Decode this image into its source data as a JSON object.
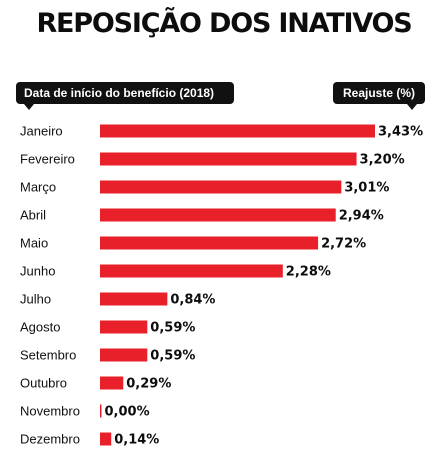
{
  "header": {
    "title": "REPOSIÇÃO DOS INATIVOS",
    "left_tag": "Data de início do benefício (2018)",
    "right_tag": "Reajuste (%)"
  },
  "colors": {
    "bar": "#e8202a",
    "tag_bg": "#111111"
  },
  "chart_data": {
    "type": "bar",
    "orientation": "horizontal",
    "title": "REPOSIÇÃO DOS INATIVOS",
    "xlabel": "Reajuste (%)",
    "ylabel": "Data de início do benefício (2018)",
    "categories": [
      "Janeiro",
      "Fevereiro",
      "Março",
      "Abril",
      "Maio",
      "Junho",
      "Julho",
      "Agosto",
      "Setembro",
      "Outubro",
      "Novembro",
      "Dezembro"
    ],
    "values": [
      3.43,
      3.2,
      3.01,
      2.94,
      2.72,
      2.28,
      0.84,
      0.59,
      0.59,
      0.29,
      0.0,
      0.14
    ],
    "value_labels": [
      "3,43%",
      "3,20%",
      "3,01%",
      "2,94%",
      "2,72%",
      "2,28%",
      "0,84%",
      "0,59%",
      "0,59%",
      "0,29%",
      "0,00%",
      "0,14%"
    ],
    "xlim": [
      0,
      3.43
    ],
    "grid": false,
    "legend": "none"
  }
}
